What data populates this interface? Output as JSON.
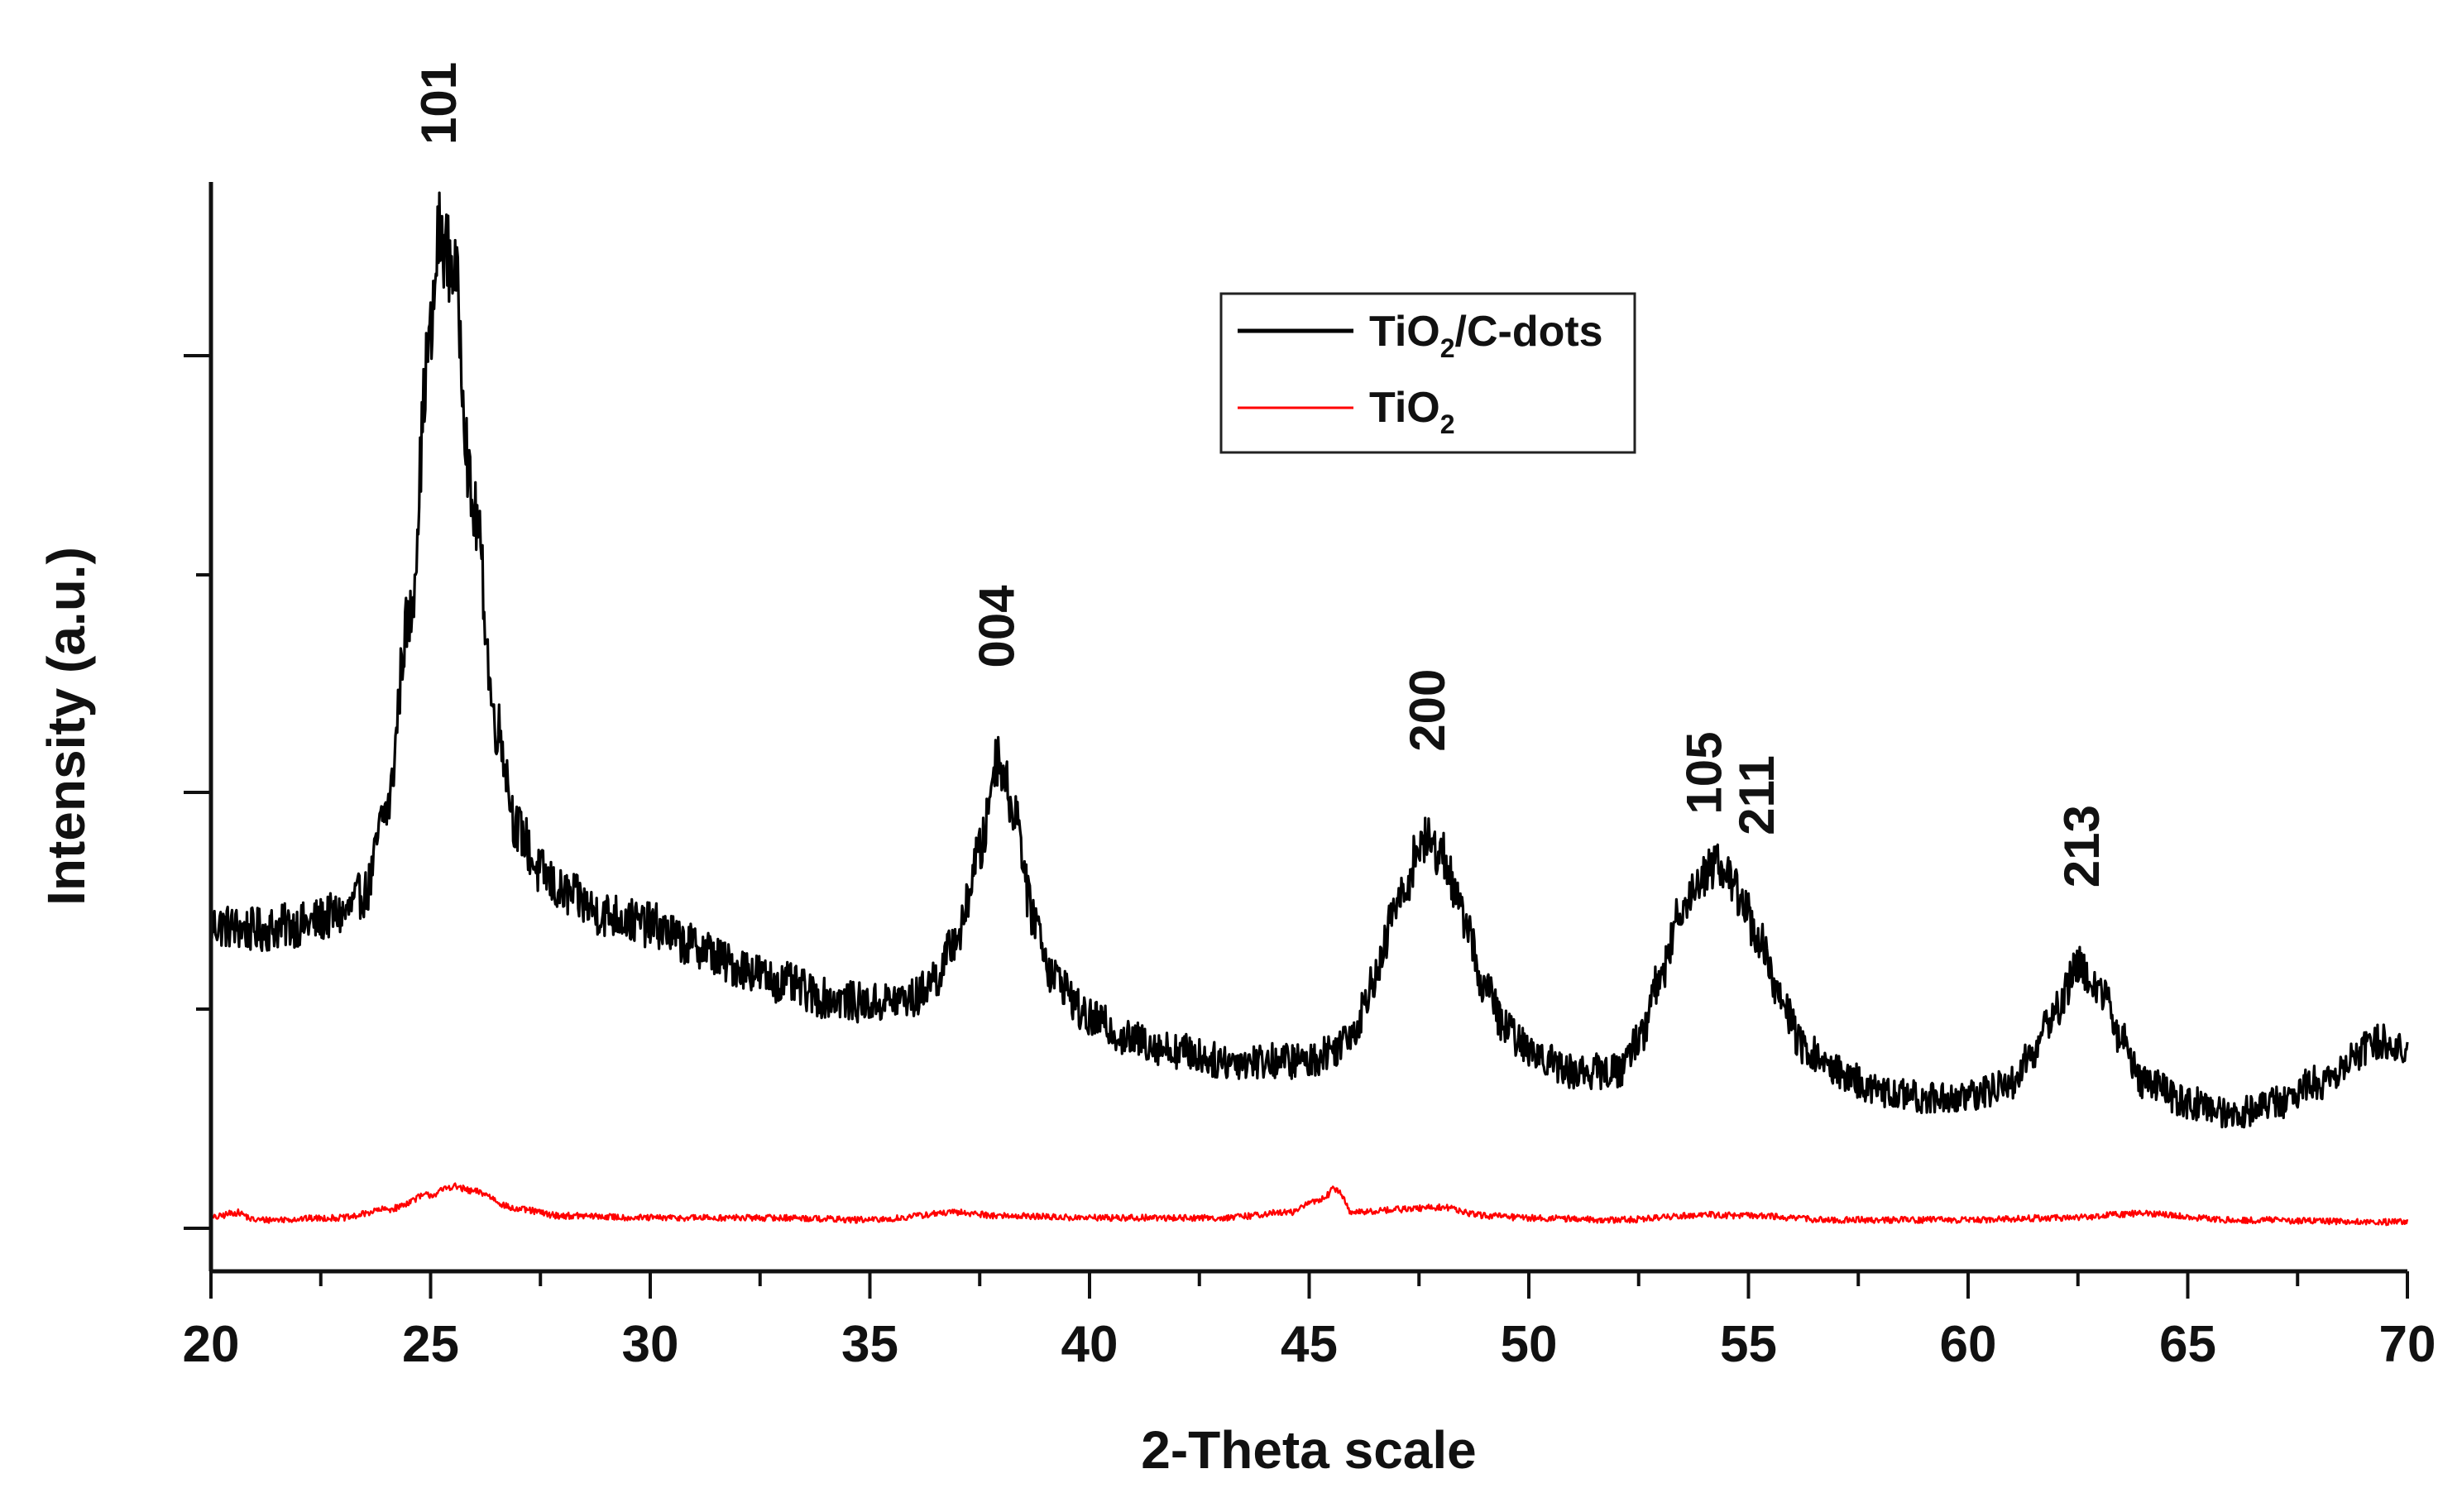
{
  "chart_data": {
    "type": "line",
    "title": "",
    "xlabel": "2-Theta scale",
    "ylabel": "Intensity (a.u.)",
    "xlim": [
      20,
      70
    ],
    "ylim": [
      0,
      100
    ],
    "x_ticks": [
      "20",
      "25",
      "30",
      "35",
      "40",
      "45",
      "50",
      "55",
      "60",
      "65",
      "70"
    ],
    "y_ticks": "unlabeled",
    "legend": {
      "placement": "top-center",
      "entries": [
        {
          "base": "TiO",
          "sub": "2",
          "suffix": "/C-dots",
          "color": "#000000"
        },
        {
          "base": "TiO",
          "sub": "2",
          "suffix": "",
          "color": "#ff0000"
        }
      ]
    },
    "annotations": [
      {
        "text": "101",
        "x": 25.2,
        "y": 100
      },
      {
        "text": "004",
        "x": 37.9,
        "y": 50
      },
      {
        "text": "200",
        "x": 47.7,
        "y": 42
      },
      {
        "text": "105",
        "x": 54.0,
        "y": 36
      },
      {
        "text": "211",
        "x": 55.2,
        "y": 34
      },
      {
        "text": "213",
        "x": 62.6,
        "y": 29
      }
    ],
    "series": [
      {
        "name": "TiO2/C-dots",
        "color": "#000000",
        "noise": 2.0,
        "points": [
          [
            20,
            29
          ],
          [
            21,
            28.5
          ],
          [
            22,
            29
          ],
          [
            23,
            30
          ],
          [
            23.5,
            32
          ],
          [
            24,
            40
          ],
          [
            24.5,
            58
          ],
          [
            25,
            85
          ],
          [
            25.2,
            95
          ],
          [
            25.5,
            92
          ],
          [
            26,
            68
          ],
          [
            26.5,
            48
          ],
          [
            27,
            38
          ],
          [
            27.5,
            34
          ],
          [
            28,
            32
          ],
          [
            29,
            30
          ],
          [
            30,
            29
          ],
          [
            31,
            27
          ],
          [
            32,
            25
          ],
          [
            33,
            23.5
          ],
          [
            34,
            22
          ],
          [
            35,
            21.5
          ],
          [
            36,
            22
          ],
          [
            36.5,
            24
          ],
          [
            37,
            28
          ],
          [
            37.5,
            36
          ],
          [
            37.9,
            45
          ],
          [
            38.3,
            40
          ],
          [
            38.7,
            30
          ],
          [
            39.2,
            24
          ],
          [
            40,
            20
          ],
          [
            41,
            18
          ],
          [
            42,
            17
          ],
          [
            43,
            16
          ],
          [
            44,
            16
          ],
          [
            45,
            16
          ],
          [
            45.5,
            17
          ],
          [
            46,
            19
          ],
          [
            46.5,
            24
          ],
          [
            47,
            31
          ],
          [
            47.6,
            37
          ],
          [
            48,
            36
          ],
          [
            48.5,
            30
          ],
          [
            49,
            23
          ],
          [
            49.5,
            19
          ],
          [
            50,
            17
          ],
          [
            51,
            15
          ],
          [
            52,
            15
          ],
          [
            52.5,
            18
          ],
          [
            53,
            24
          ],
          [
            53.5,
            31
          ],
          [
            54,
            34
          ],
          [
            54.3,
            35
          ],
          [
            54.8,
            32
          ],
          [
            55.2,
            28
          ],
          [
            55.7,
            22
          ],
          [
            56.3,
            17
          ],
          [
            57,
            15
          ],
          [
            58,
            13
          ],
          [
            59,
            12.5
          ],
          [
            60,
            12.5
          ],
          [
            61,
            14
          ],
          [
            61.5,
            17
          ],
          [
            62,
            21
          ],
          [
            62.5,
            25
          ],
          [
            63,
            23
          ],
          [
            63.5,
            18
          ],
          [
            64,
            14
          ],
          [
            65,
            12
          ],
          [
            66,
            11
          ],
          [
            67,
            12
          ],
          [
            68,
            14
          ],
          [
            69,
            17
          ],
          [
            69.5,
            18
          ],
          [
            70,
            17
          ]
        ]
      },
      {
        "name": "TiO2",
        "color": "#ff0000",
        "noise": 0.5,
        "points": [
          [
            20,
            1
          ],
          [
            20.6,
            1.5
          ],
          [
            21,
            0.8
          ],
          [
            23,
            1
          ],
          [
            24,
            1.8
          ],
          [
            25,
            3.2
          ],
          [
            25.5,
            4
          ],
          [
            26,
            3.5
          ],
          [
            27,
            1.8
          ],
          [
            28,
            1.2
          ],
          [
            30,
            1
          ],
          [
            33,
            1
          ],
          [
            35,
            0.8
          ],
          [
            37,
            1.5
          ],
          [
            38,
            1.2
          ],
          [
            40,
            1
          ],
          [
            43,
            1
          ],
          [
            44.5,
            1.5
          ],
          [
            45.3,
            2.8
          ],
          [
            45.6,
            3.8
          ],
          [
            46,
            1.5
          ],
          [
            47,
            1.8
          ],
          [
            48,
            2
          ],
          [
            49,
            1.2
          ],
          [
            50,
            1
          ],
          [
            52,
            0.8
          ],
          [
            54,
            1.3
          ],
          [
            55,
            1.2
          ],
          [
            57,
            0.8
          ],
          [
            60,
            0.8
          ],
          [
            62,
            1
          ],
          [
            64,
            1.4
          ],
          [
            66,
            0.8
          ],
          [
            70,
            0.6
          ]
        ]
      }
    ]
  }
}
